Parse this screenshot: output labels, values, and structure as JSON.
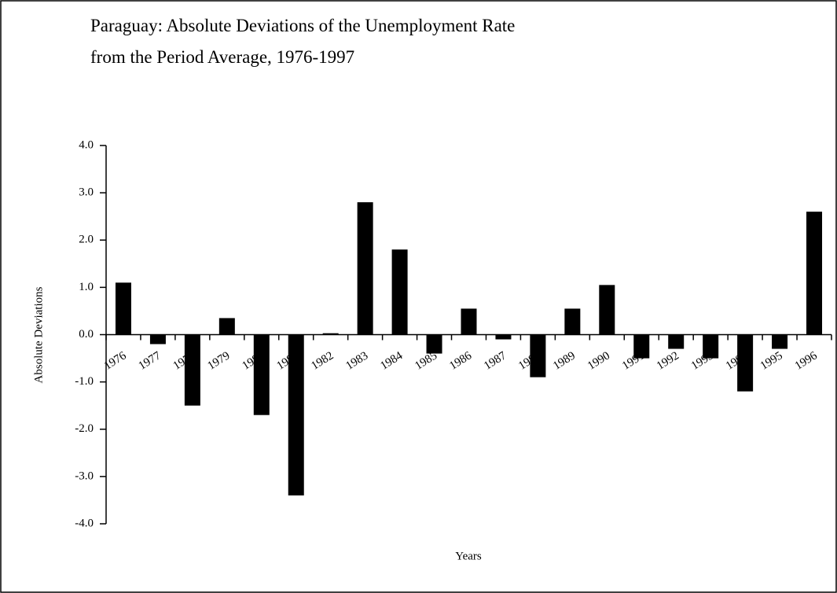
{
  "chart_data": {
    "type": "bar",
    "title": "Paraguay:  Absolute Deviations of the Unemployment Rate",
    "subtitle": "from the Period Average, 1976-1997",
    "y_label": "Absolute Deviations",
    "x_label": "Years",
    "categories": [
      "1976",
      "1977",
      "1978",
      "1979",
      "1980",
      "1981",
      "1982",
      "1983",
      "1984",
      "1985",
      "1986",
      "1987",
      "1988",
      "1989",
      "1990",
      "1991",
      "1992",
      "1993",
      "1994",
      "1995",
      "1996"
    ],
    "values": [
      1.1,
      -0.2,
      -1.5,
      0.35,
      -1.7,
      -3.4,
      0.03,
      2.8,
      1.8,
      -0.4,
      0.55,
      -0.1,
      -0.9,
      0.55,
      1.05,
      -0.5,
      -0.3,
      -0.5,
      -1.2,
      -0.3,
      2.6
    ],
    "color": "#000000",
    "ylim": [
      -4,
      4
    ],
    "yticks": [
      {
        "value": 4,
        "label": "4.0"
      },
      {
        "value": 3,
        "label": "3.0"
      },
      {
        "value": 2,
        "label": "2.0"
      },
      {
        "value": 1,
        "label": "1.0"
      },
      {
        "value": 0,
        "label": "0.0"
      },
      {
        "value": -1,
        "label": "-1.0"
      },
      {
        "value": -2,
        "label": "-2.0"
      },
      {
        "value": -3,
        "label": "-3.0"
      },
      {
        "value": -4,
        "label": "-4.0"
      }
    ],
    "grid": false
  }
}
